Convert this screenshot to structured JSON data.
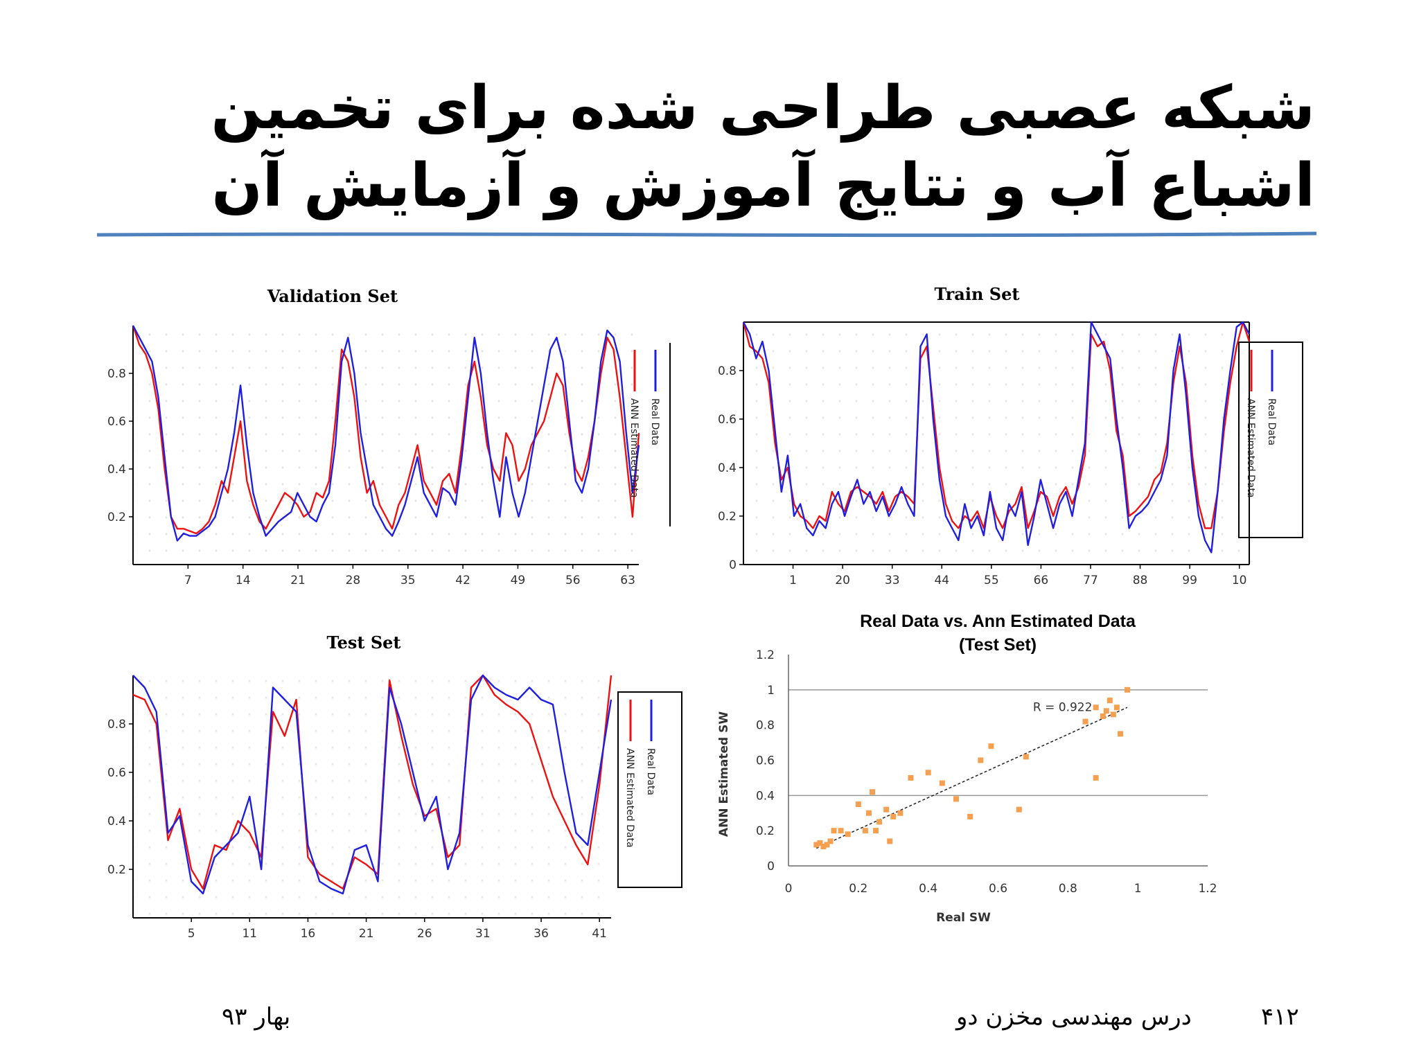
{
  "slide": {
    "title_line1": "شبکه عصبی طراحی شده برای تخمین",
    "title_line2": "اشباع آب و نتایج آموزش و آزمایش آن",
    "footer_left": "بهار ۹۳",
    "footer_center": "درس مهندسی مخزن دو",
    "footer_right": "۴۱۲",
    "title_rule_color": "#4f81bd"
  },
  "colors": {
    "real": "#1f1fe0",
    "ann": "#ee1111",
    "scatter_point": "#f5a050",
    "grid": "#999999"
  },
  "chart_data": [
    {
      "id": "validation",
      "type": "line",
      "title": "Validation Set",
      "x_ticks": [
        "7",
        "14",
        "21",
        "28",
        "35",
        "42",
        "49",
        "56",
        "63"
      ],
      "y_ticks": [
        "0.2",
        "0.4",
        "0.6",
        "0.8"
      ],
      "ylim": [
        0,
        1
      ],
      "legend": [
        "Real Data",
        "ANN Estimated Data"
      ],
      "series": [
        {
          "name": "Real Data",
          "values": [
            1,
            0.95,
            0.9,
            0.85,
            0.7,
            0.45,
            0.2,
            0.1,
            0.13,
            0.12,
            0.12,
            0.14,
            0.16,
            0.2,
            0.3,
            0.4,
            0.55,
            0.75,
            0.5,
            0.3,
            0.2,
            0.12,
            0.15,
            0.18,
            0.2,
            0.22,
            0.3,
            0.25,
            0.2,
            0.18,
            0.25,
            0.3,
            0.5,
            0.85,
            0.95,
            0.8,
            0.55,
            0.4,
            0.25,
            0.2,
            0.15,
            0.12,
            0.18,
            0.25,
            0.35,
            0.45,
            0.3,
            0.25,
            0.2,
            0.32,
            0.3,
            0.25,
            0.45,
            0.7,
            0.95,
            0.8,
            0.55,
            0.35,
            0.2,
            0.45,
            0.3,
            0.2,
            0.3,
            0.45,
            0.6,
            0.75,
            0.9,
            0.95,
            0.85,
            0.6,
            0.35,
            0.3,
            0.4,
            0.6,
            0.85,
            0.98,
            0.95,
            0.85,
            0.55,
            0.3,
            0.5
          ]
        },
        {
          "name": "ANN Estimated Data",
          "values": [
            1,
            0.92,
            0.88,
            0.8,
            0.65,
            0.4,
            0.2,
            0.15,
            0.15,
            0.14,
            0.13,
            0.15,
            0.18,
            0.25,
            0.35,
            0.3,
            0.45,
            0.6,
            0.35,
            0.25,
            0.18,
            0.15,
            0.2,
            0.25,
            0.3,
            0.28,
            0.25,
            0.2,
            0.22,
            0.3,
            0.28,
            0.35,
            0.6,
            0.9,
            0.85,
            0.7,
            0.45,
            0.3,
            0.35,
            0.25,
            0.2,
            0.15,
            0.25,
            0.3,
            0.4,
            0.5,
            0.35,
            0.3,
            0.25,
            0.35,
            0.38,
            0.3,
            0.5,
            0.75,
            0.85,
            0.7,
            0.5,
            0.4,
            0.35,
            0.55,
            0.5,
            0.35,
            0.4,
            0.5,
            0.55,
            0.6,
            0.7,
            0.8,
            0.75,
            0.55,
            0.4,
            0.35,
            0.45,
            0.6,
            0.8,
            0.95,
            0.9,
            0.7,
            0.45,
            0.2,
            0.55
          ]
        }
      ]
    },
    {
      "id": "train",
      "type": "line",
      "title": "Train Set",
      "x_ticks": [
        "1",
        "20",
        "33",
        "44",
        "55",
        "66",
        "77",
        "88",
        "99",
        "10"
      ],
      "y_ticks": [
        "0",
        "0.2",
        "0.4",
        "0.6",
        "0.8"
      ],
      "ylim": [
        0,
        1
      ],
      "legend": [
        "Real Data",
        "ANN Estimated Data"
      ],
      "series": [
        {
          "name": "Real Data",
          "values": [
            1,
            0.95,
            0.85,
            0.92,
            0.8,
            0.55,
            0.3,
            0.45,
            0.2,
            0.25,
            0.15,
            0.12,
            0.18,
            0.15,
            0.25,
            0.3,
            0.2,
            0.28,
            0.35,
            0.25,
            0.3,
            0.22,
            0.28,
            0.2,
            0.25,
            0.32,
            0.25,
            0.2,
            0.9,
            0.95,
            0.6,
            0.35,
            0.2,
            0.15,
            0.1,
            0.25,
            0.15,
            0.2,
            0.12,
            0.3,
            0.15,
            0.1,
            0.25,
            0.2,
            0.3,
            0.08,
            0.2,
            0.35,
            0.25,
            0.15,
            0.25,
            0.3,
            0.2,
            0.35,
            0.5,
            1,
            0.95,
            0.9,
            0.85,
            0.6,
            0.4,
            0.15,
            0.2,
            0.22,
            0.25,
            0.3,
            0.35,
            0.45,
            0.8,
            0.95,
            0.7,
            0.4,
            0.2,
            0.1,
            0.05,
            0.3,
            0.6,
            0.8,
            0.98,
            1,
            0.95
          ]
        },
        {
          "name": "ANN Estimated Data",
          "values": [
            1,
            0.9,
            0.88,
            0.85,
            0.75,
            0.5,
            0.35,
            0.4,
            0.25,
            0.2,
            0.18,
            0.15,
            0.2,
            0.18,
            0.3,
            0.25,
            0.22,
            0.3,
            0.32,
            0.3,
            0.28,
            0.25,
            0.3,
            0.22,
            0.28,
            0.3,
            0.28,
            0.25,
            0.85,
            0.9,
            0.65,
            0.4,
            0.25,
            0.18,
            0.15,
            0.2,
            0.18,
            0.22,
            0.15,
            0.28,
            0.2,
            0.15,
            0.22,
            0.25,
            0.32,
            0.15,
            0.22,
            0.3,
            0.28,
            0.2,
            0.28,
            0.32,
            0.25,
            0.32,
            0.45,
            0.95,
            0.9,
            0.92,
            0.8,
            0.55,
            0.45,
            0.2,
            0.22,
            0.25,
            0.28,
            0.35,
            0.38,
            0.5,
            0.75,
            0.9,
            0.75,
            0.45,
            0.25,
            0.15,
            0.15,
            0.3,
            0.55,
            0.75,
            0.9,
            1,
            0.92
          ]
        }
      ]
    },
    {
      "id": "test",
      "type": "line",
      "title": "Test Set",
      "x_ticks": [
        "5",
        "11",
        "16",
        "21",
        "26",
        "31",
        "36",
        "41"
      ],
      "y_ticks": [
        "0.2",
        "0.4",
        "0.6",
        "0.8"
      ],
      "ylim": [
        0,
        1
      ],
      "legend": [
        "Real Data",
        "ANN Estimated Data"
      ],
      "series": [
        {
          "name": "Real Data",
          "values": [
            1,
            0.95,
            0.85,
            0.35,
            0.42,
            0.15,
            0.1,
            0.25,
            0.3,
            0.35,
            0.5,
            0.2,
            0.95,
            0.9,
            0.85,
            0.3,
            0.15,
            0.12,
            0.1,
            0.28,
            0.3,
            0.15,
            0.95,
            0.8,
            0.6,
            0.4,
            0.5,
            0.2,
            0.35,
            0.9,
            1,
            0.95,
            0.92,
            0.9,
            0.95,
            0.9,
            0.88,
            0.6,
            0.35,
            0.3,
            0.6,
            0.9
          ]
        },
        {
          "name": "ANN Estimated Data",
          "values": [
            0.92,
            0.9,
            0.8,
            0.32,
            0.45,
            0.2,
            0.12,
            0.3,
            0.28,
            0.4,
            0.35,
            0.25,
            0.85,
            0.75,
            0.9,
            0.25,
            0.18,
            0.15,
            0.12,
            0.25,
            0.22,
            0.18,
            0.98,
            0.75,
            0.55,
            0.42,
            0.45,
            0.25,
            0.3,
            0.95,
            1,
            0.92,
            0.88,
            0.85,
            0.8,
            0.65,
            0.5,
            0.4,
            0.3,
            0.22,
            0.55,
            1
          ]
        }
      ]
    },
    {
      "id": "scatter",
      "type": "scatter",
      "title": "Real Data vs. Ann Estimated Data",
      "subtitle": "(Test Set)",
      "xlabel": "Real SW",
      "ylabel": "ANN Estimated SW",
      "xlim": [
        0,
        1.2
      ],
      "ylim": [
        0,
        1.2
      ],
      "x_ticks": [
        "0",
        "0.2",
        "0.4",
        "0.6",
        "0.8",
        "1",
        "1.2"
      ],
      "y_ticks": [
        "0",
        "0.2",
        "0.4",
        "0.6",
        "0.8",
        "1",
        "1.2"
      ],
      "annotation": "R = 0.922",
      "trendline": {
        "x": [
          0.08,
          0.97
        ],
        "y": [
          0.1,
          0.9
        ]
      },
      "points": [
        [
          0.08,
          0.12
        ],
        [
          0.09,
          0.13
        ],
        [
          0.1,
          0.11
        ],
        [
          0.11,
          0.12
        ],
        [
          0.12,
          0.14
        ],
        [
          0.13,
          0.2
        ],
        [
          0.15,
          0.2
        ],
        [
          0.17,
          0.18
        ],
        [
          0.2,
          0.35
        ],
        [
          0.22,
          0.2
        ],
        [
          0.23,
          0.3
        ],
        [
          0.24,
          0.42
        ],
        [
          0.25,
          0.2
        ],
        [
          0.26,
          0.25
        ],
        [
          0.28,
          0.32
        ],
        [
          0.29,
          0.14
        ],
        [
          0.3,
          0.28
        ],
        [
          0.32,
          0.3
        ],
        [
          0.35,
          0.5
        ],
        [
          0.4,
          0.53
        ],
        [
          0.44,
          0.47
        ],
        [
          0.48,
          0.38
        ],
        [
          0.52,
          0.28
        ],
        [
          0.55,
          0.6
        ],
        [
          0.58,
          0.68
        ],
        [
          0.66,
          0.32
        ],
        [
          0.68,
          0.62
        ],
        [
          0.85,
          0.82
        ],
        [
          0.88,
          0.5
        ],
        [
          0.88,
          0.9
        ],
        [
          0.9,
          0.85
        ],
        [
          0.91,
          0.88
        ],
        [
          0.92,
          0.94
        ],
        [
          0.93,
          0.86
        ],
        [
          0.94,
          0.9
        ],
        [
          0.95,
          0.75
        ],
        [
          0.97,
          1.0
        ]
      ]
    }
  ]
}
